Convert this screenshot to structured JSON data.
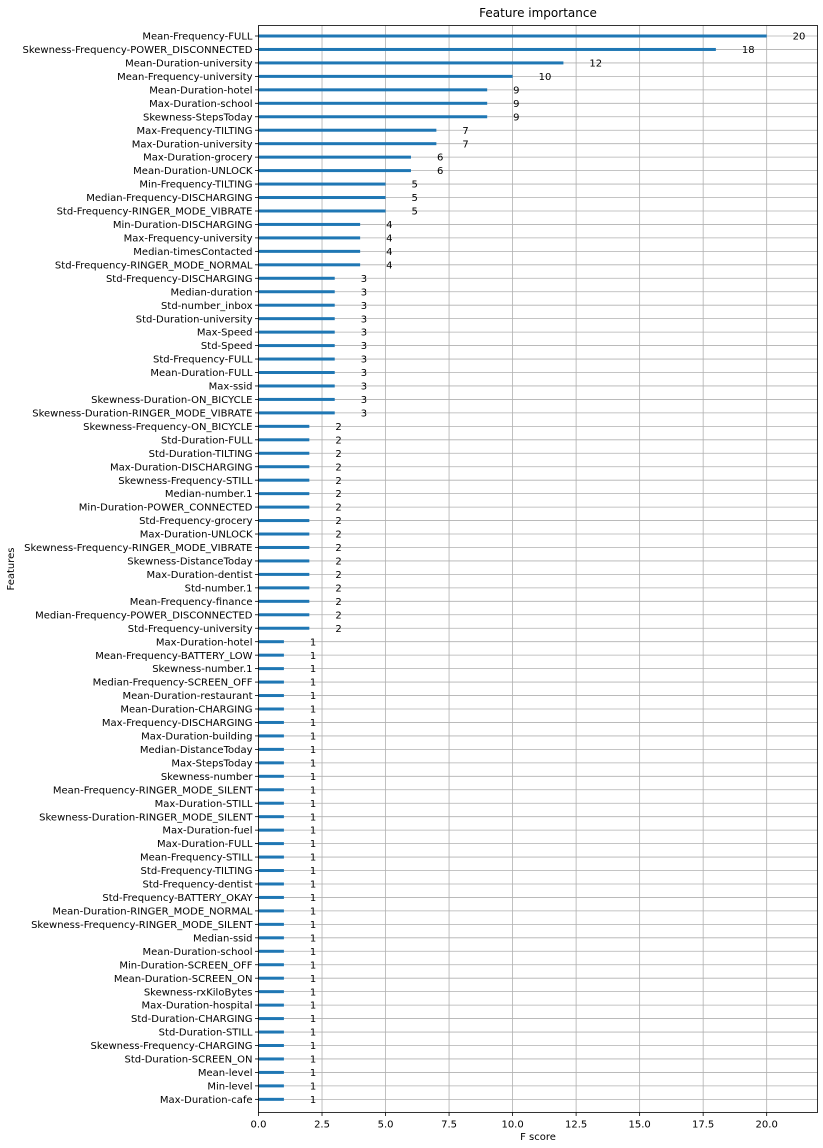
{
  "chart_data": {
    "type": "bar",
    "orientation": "horizontal",
    "title": "Feature importance",
    "xlabel": "F score",
    "ylabel": "Features",
    "xlim": [
      0,
      22
    ],
    "xticks": [
      "0.0",
      "2.5",
      "5.0",
      "7.5",
      "10.0",
      "12.5",
      "15.0",
      "17.5",
      "20.0"
    ],
    "grid": true,
    "bar_color": "#1f77b4",
    "categories": [
      "Mean-Frequency-FULL",
      "Skewness-Frequency-POWER_DISCONNECTED",
      "Mean-Duration-university",
      "Mean-Frequency-university",
      "Mean-Duration-hotel",
      "Max-Duration-school",
      "Skewness-StepsToday",
      "Max-Frequency-TILTING",
      "Max-Duration-university",
      "Max-Duration-grocery",
      "Mean-Duration-UNLOCK",
      "Min-Frequency-TILTING",
      "Median-Frequency-DISCHARGING",
      "Std-Frequency-RINGER_MODE_VIBRATE",
      "Min-Duration-DISCHARGING",
      "Max-Frequency-university",
      "Median-timesContacted",
      "Std-Frequency-RINGER_MODE_NORMAL",
      "Std-Frequency-DISCHARGING",
      "Median-duration",
      "Std-number_inbox",
      "Std-Duration-university",
      "Max-Speed",
      "Std-Speed",
      "Std-Frequency-FULL",
      "Mean-Duration-FULL",
      "Max-ssid",
      "Skewness-Duration-ON_BICYCLE",
      "Skewness-Duration-RINGER_MODE_VIBRATE",
      "Skewness-Frequency-ON_BICYCLE",
      "Std-Duration-FULL",
      "Std-Duration-TILTING",
      "Max-Duration-DISCHARGING",
      "Skewness-Frequency-STILL",
      "Median-number.1",
      "Min-Duration-POWER_CONNECTED",
      "Std-Frequency-grocery",
      "Max-Duration-UNLOCK",
      "Skewness-Frequency-RINGER_MODE_VIBRATE",
      "Skewness-DistanceToday",
      "Max-Duration-dentist",
      "Std-number.1",
      "Mean-Frequency-finance",
      "Median-Frequency-POWER_DISCONNECTED",
      "Std-Frequency-university",
      "Max-Duration-hotel",
      "Mean-Frequency-BATTERY_LOW",
      "Skewness-number.1",
      "Median-Frequency-SCREEN_OFF",
      "Mean-Duration-restaurant",
      "Mean-Duration-CHARGING",
      "Max-Frequency-DISCHARGING",
      "Max-Duration-building",
      "Median-DistanceToday",
      "Max-StepsToday",
      "Skewness-number",
      "Mean-Frequency-RINGER_MODE_SILENT",
      "Max-Duration-STILL",
      "Skewness-Duration-RINGER_MODE_SILENT",
      "Max-Duration-fuel",
      "Max-Duration-FULL",
      "Mean-Frequency-STILL",
      "Std-Frequency-TILTING",
      "Std-Frequency-dentist",
      "Std-Frequency-BATTERY_OKAY",
      "Mean-Duration-RINGER_MODE_NORMAL",
      "Skewness-Frequency-RINGER_MODE_SILENT",
      "Median-ssid",
      "Mean-Duration-school",
      "Min-Duration-SCREEN_OFF",
      "Mean-Duration-SCREEN_ON",
      "Skewness-rxKiloBytes",
      "Max-Duration-hospital",
      "Std-Duration-CHARGING",
      "Std-Duration-STILL",
      "Skewness-Frequency-CHARGING",
      "Std-Duration-SCREEN_ON",
      "Mean-level",
      "Min-level",
      "Max-Duration-cafe"
    ],
    "values": [
      20,
      18,
      12,
      10,
      9,
      9,
      9,
      7,
      7,
      6,
      6,
      5,
      5,
      5,
      4,
      4,
      4,
      4,
      3,
      3,
      3,
      3,
      3,
      3,
      3,
      3,
      3,
      3,
      3,
      2,
      2,
      2,
      2,
      2,
      2,
      2,
      2,
      2,
      2,
      2,
      2,
      2,
      2,
      2,
      2,
      1,
      1,
      1,
      1,
      1,
      1,
      1,
      1,
      1,
      1,
      1,
      1,
      1,
      1,
      1,
      1,
      1,
      1,
      1,
      1,
      1,
      1,
      1,
      1,
      1,
      1,
      1,
      1,
      1,
      1,
      1,
      1,
      1,
      1,
      1
    ]
  }
}
